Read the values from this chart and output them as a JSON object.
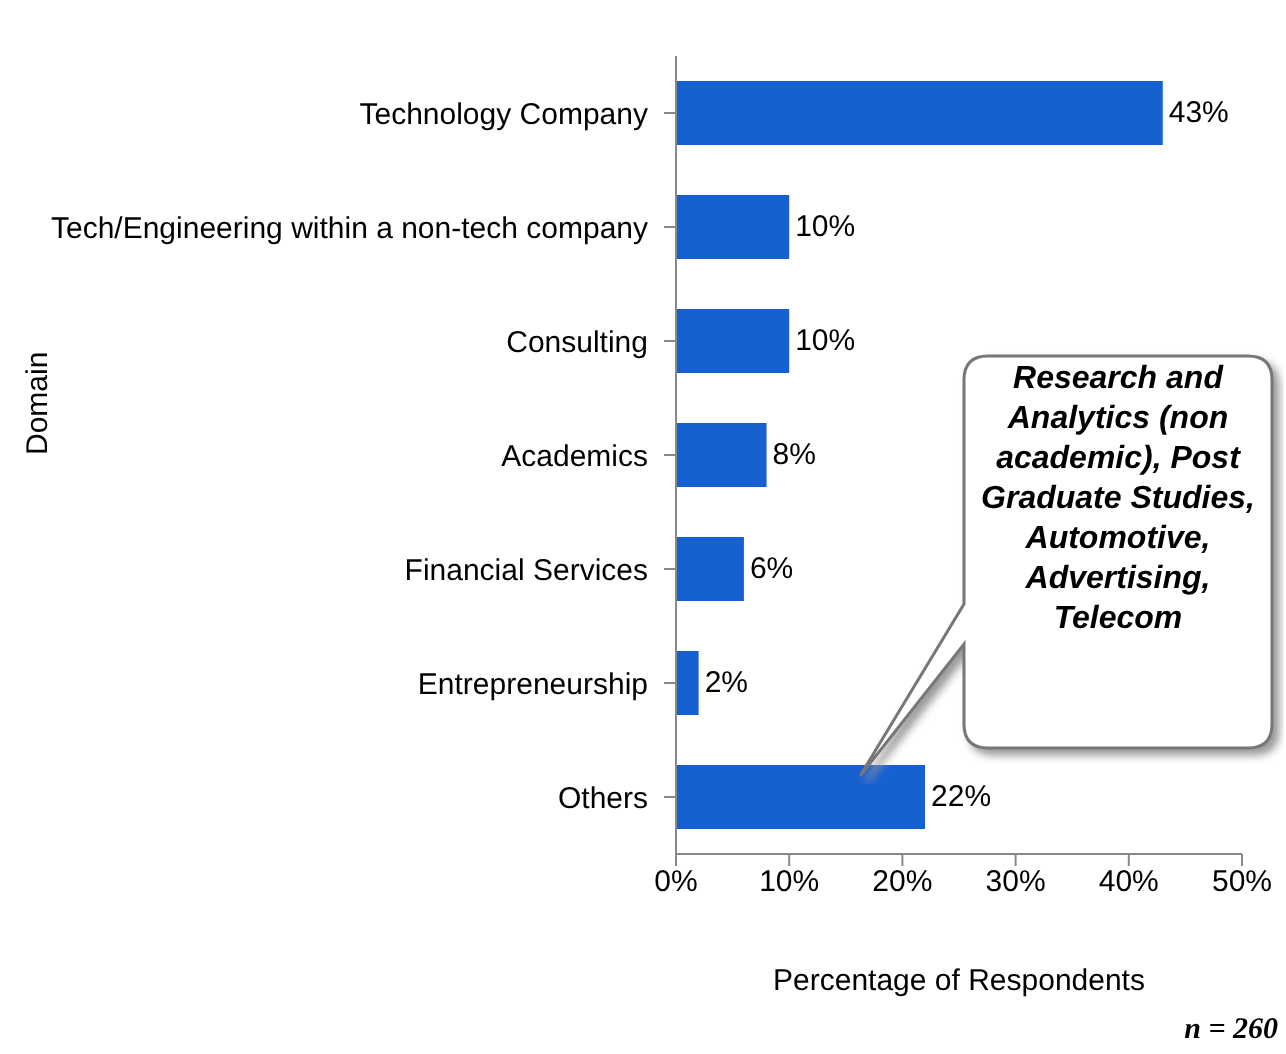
{
  "chart_data": {
    "type": "bar",
    "orientation": "horizontal",
    "ylabel": "Domain",
    "xlabel": "Percentage of Respondents",
    "categories": [
      "Technology Company",
      "Tech/Engineering within a non-tech company",
      "Consulting",
      "Academics",
      "Financial Services",
      "Entrepreneurship",
      "Others"
    ],
    "values": [
      43,
      10,
      10,
      8,
      6,
      2,
      22
    ],
    "value_labels": [
      "43%",
      "10%",
      "10%",
      "8%",
      "6%",
      "2%",
      "22%"
    ],
    "color": "#1660d0",
    "xlim": [
      0,
      50
    ],
    "xticks": [
      {
        "value": 0,
        "label": "0%"
      },
      {
        "value": 10,
        "label": "10%"
      },
      {
        "value": 20,
        "label": "20%"
      },
      {
        "value": 30,
        "label": "30%"
      },
      {
        "value": 40,
        "label": "40%"
      },
      {
        "value": 50,
        "label": "50%"
      }
    ],
    "grid": false,
    "legend": false,
    "annotations": [
      "Research and Analytics (non academic), Post Graduate Studies, Automotive, Advertising, Telecom",
      "n = 260"
    ]
  }
}
